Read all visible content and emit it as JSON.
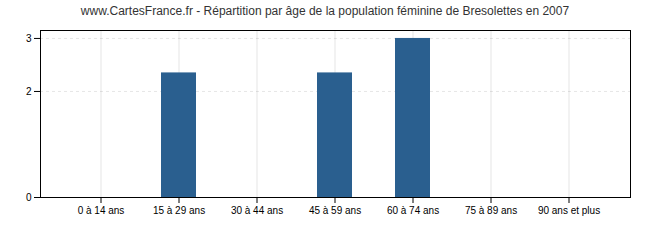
{
  "chart_data": {
    "type": "bar",
    "title": "www.CartesFrance.fr - Répartition par âge de la population féminine de Bresolettes en 2007",
    "categories": [
      "0 à 14 ans",
      "15 à 29 ans",
      "30 à 44 ans",
      "45 à 59 ans",
      "60 à 74 ans",
      "75 à 89 ans",
      "90 ans et plus"
    ],
    "values": [
      0,
      2.35,
      0,
      2.35,
      3,
      0,
      0
    ],
    "color": "#2a5f8f",
    "ylim": [
      0,
      3.15
    ],
    "yticks": [
      0,
      2,
      3
    ],
    "grid": true
  }
}
